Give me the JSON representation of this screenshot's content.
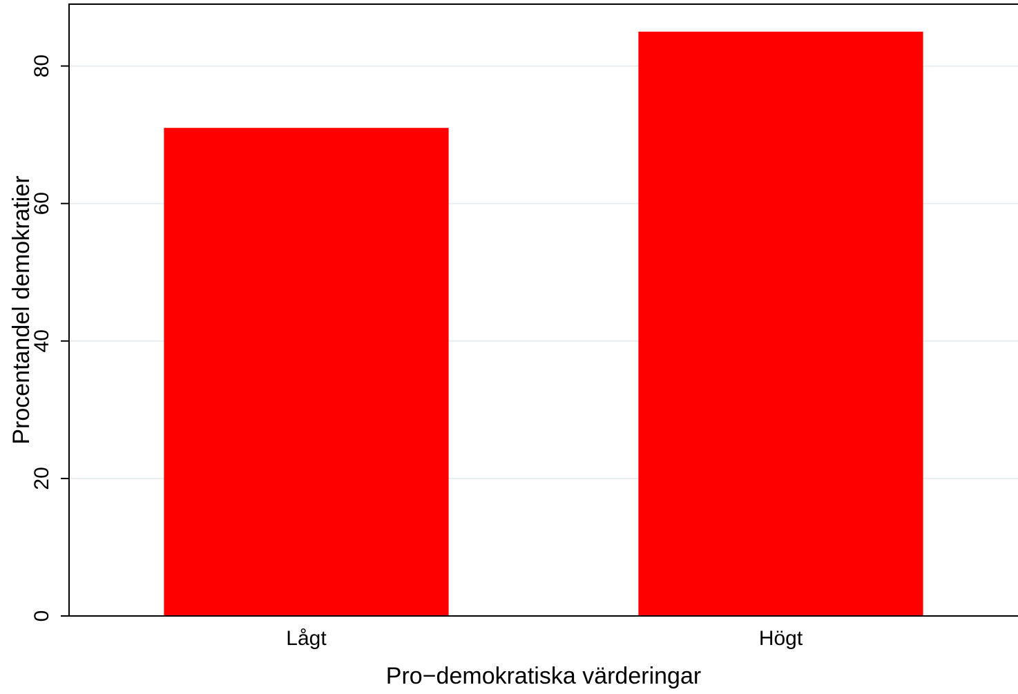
{
  "chart_data": {
    "type": "bar",
    "categories": [
      "Lågt",
      "Högt"
    ],
    "values": [
      71,
      85
    ],
    "xlabel": "Pro−demokratiska värderingar",
    "ylabel": "Procentandel demokratier",
    "ylim": [
      0,
      89
    ],
    "yticks": [
      0,
      20,
      40,
      60,
      80
    ],
    "grid": true,
    "bar_color": "#ff0000",
    "grid_color": "#e8eef0",
    "axis_color": "#000000"
  }
}
